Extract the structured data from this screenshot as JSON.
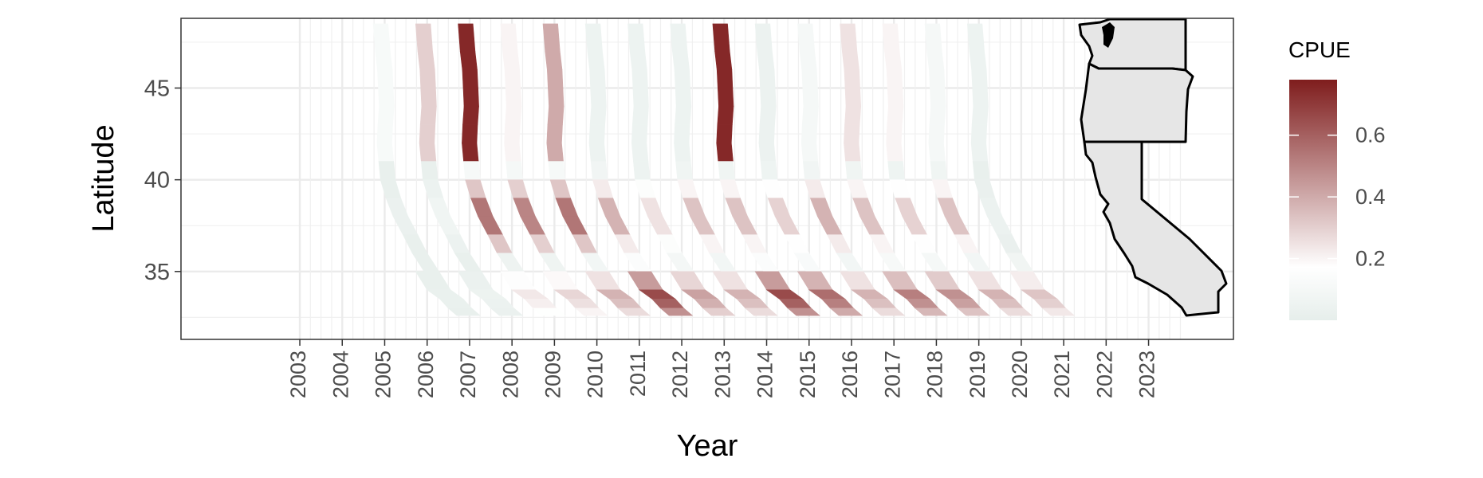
{
  "chart_data": {
    "type": "heatmap",
    "title": "",
    "xlabel": "Year",
    "ylabel": "Latitude",
    "x_ticks": [
      2003,
      2004,
      2005,
      2006,
      2007,
      2008,
      2009,
      2010,
      2011,
      2012,
      2013,
      2014,
      2015,
      2016,
      2017,
      2018,
      2019,
      2020,
      2021,
      2022,
      2023
    ],
    "y_ticks": [
      35,
      40,
      45
    ],
    "xlim": [
      2000.2,
      2025.0
    ],
    "ylim": [
      31.3,
      48.8
    ],
    "grid": true,
    "legend": {
      "title": "CPUE",
      "placement": "right",
      "range": [
        0,
        0.78
      ],
      "ticks": [
        0.2,
        0.4,
        0.6
      ],
      "colors": {
        "low": "#e6eeeb",
        "mid": "#ffffff",
        "high": "#7f1d1d"
      }
    },
    "years_with_data": [
      2005,
      2006,
      2007,
      2008,
      2009,
      2010,
      2011,
      2012,
      2013,
      2014,
      2015,
      2016,
      2017,
      2018,
      2019
    ],
    "series": [
      {
        "year": 2005,
        "north_peak": 0.12,
        "central_peak": 0.04,
        "south_peak": 0.03
      },
      {
        "year": 2006,
        "north_peak": 0.3,
        "central_peak": 0.08,
        "south_peak": 0.05
      },
      {
        "year": 2007,
        "north_peak": 0.75,
        "central_peak": 0.65,
        "south_peak": 0.25
      },
      {
        "year": 2008,
        "north_peak": 0.2,
        "central_peak": 0.6,
        "south_peak": 0.3
      },
      {
        "year": 2009,
        "north_peak": 0.4,
        "central_peak": 0.65,
        "south_peak": 0.4
      },
      {
        "year": 2010,
        "north_peak": 0.05,
        "central_peak": 0.45,
        "south_peak": 0.7
      },
      {
        "year": 2011,
        "north_peak": 0.05,
        "central_peak": 0.3,
        "south_peak": 0.45
      },
      {
        "year": 2012,
        "north_peak": 0.05,
        "central_peak": 0.4,
        "south_peak": 0.4
      },
      {
        "year": 2013,
        "north_peak": 0.75,
        "central_peak": 0.4,
        "south_peak": 0.7
      },
      {
        "year": 2014,
        "north_peak": 0.04,
        "central_peak": 0.35,
        "south_peak": 0.6
      },
      {
        "year": 2015,
        "north_peak": 0.1,
        "central_peak": 0.45,
        "south_peak": 0.4
      },
      {
        "year": 2016,
        "north_peak": 0.25,
        "central_peak": 0.4,
        "south_peak": 0.55
      },
      {
        "year": 2017,
        "north_peak": 0.2,
        "central_peak": 0.35,
        "south_peak": 0.5
      },
      {
        "year": 2018,
        "north_peak": 0.1,
        "central_peak": 0.4,
        "south_peak": 0.4
      },
      {
        "year": 2019,
        "north_peak": 0.05,
        "central_peak": 0.05,
        "south_peak": 0.35
      }
    ],
    "inset": {
      "type": "map",
      "regions": [
        "Washington",
        "Oregon",
        "California"
      ],
      "fill": "#e6e6e6"
    }
  }
}
